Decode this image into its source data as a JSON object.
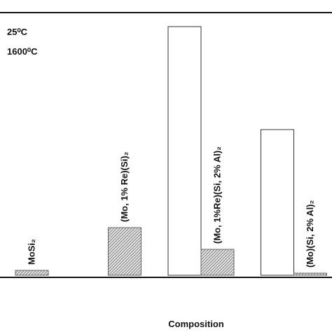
{
  "chart_data": {
    "type": "bar",
    "x_label": "Composition",
    "categories": [
      "MoSi₂",
      "(Mo, 1% Re)(Si)₂",
      "(Mo, 1%Re)(Si, 2% Al)₂",
      "(Mo)(Si, 2% Al)₂"
    ],
    "series": [
      {
        "name": "25⁰C",
        "color": "#ffffff",
        "values": [
          null,
          null,
          355,
          208
        ]
      },
      {
        "name": "1600⁰C",
        "color": "#9a9a9a",
        "values": [
          7,
          68,
          37,
          3
        ]
      }
    ],
    "ylim": [
      0,
      374
    ]
  }
}
